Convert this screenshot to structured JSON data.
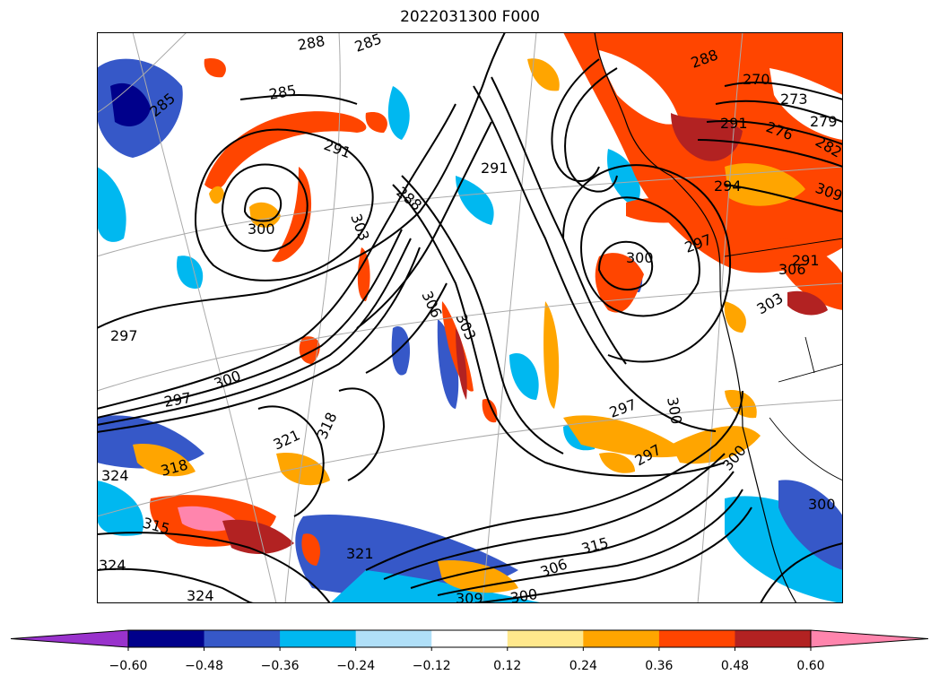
{
  "title": "2022031300 F000",
  "colorbar": {
    "levels": [
      -0.6,
      -0.48,
      -0.36,
      -0.24,
      -0.12,
      0.12,
      0.24,
      0.36,
      0.48,
      0.6
    ],
    "tick_labels": [
      "−0.60",
      "−0.48",
      "−0.36",
      "−0.24",
      "−0.12",
      "0.12",
      "0.24",
      "0.36",
      "0.48",
      "0.60"
    ],
    "colors": [
      "#9932cc",
      "#00008b",
      "#3658c8",
      "#00b8f0",
      "#b0e0f8",
      "#ffffff",
      "#ffe88c",
      "#ffa500",
      "#ff4500",
      "#b22222",
      "#ff85ad"
    ],
    "extend": "both"
  },
  "contour_labels": [
    "285",
    "285",
    "285",
    "288",
    "291",
    "291",
    "288",
    "300",
    "303",
    "306",
    "297",
    "303",
    "300",
    "297",
    "321",
    "318",
    "324",
    "318",
    "315",
    "321",
    "324",
    "324",
    "306",
    "315",
    "300",
    "309",
    "297",
    "300",
    "297",
    "300",
    "270",
    "273",
    "276",
    "279",
    "282",
    "288",
    "291",
    "294",
    "297",
    "300",
    "303",
    "306",
    "309",
    "291",
    "300"
  ]
}
